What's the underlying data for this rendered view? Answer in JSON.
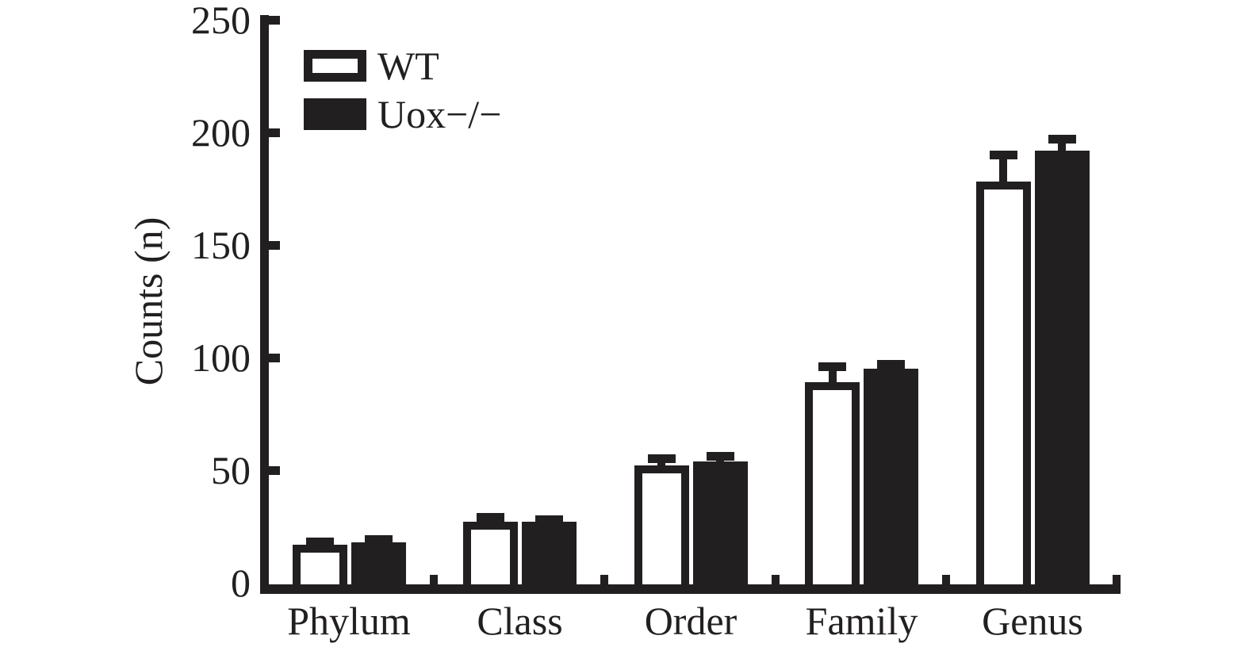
{
  "chart_data": {
    "type": "bar",
    "title": "",
    "ylabel": "Counts (n)",
    "xlabel": "",
    "categories": [
      "Phylum",
      "Class",
      "Order",
      "Family",
      "Genus"
    ],
    "series": [
      {
        "name": "WT",
        "style": "open",
        "values": [
          17,
          27,
          52,
          89,
          178
        ],
        "errors_plus": [
          3,
          4,
          5,
          9,
          14
        ]
      },
      {
        "name": "Uox−/−",
        "style": "filled",
        "values": [
          18,
          27,
          54,
          95,
          192
        ],
        "errors_plus": [
          3,
          3,
          4,
          4,
          7
        ]
      }
    ],
    "ylim": [
      0,
      250
    ],
    "yticks": [
      0,
      50,
      100,
      150,
      200,
      250
    ],
    "grid": false,
    "legend_position": "top-left-inside",
    "error_bars": "upward with caps",
    "colors": {
      "ink": "#221f20",
      "background": "#ffffff",
      "open_fill": "#ffffff"
    }
  }
}
